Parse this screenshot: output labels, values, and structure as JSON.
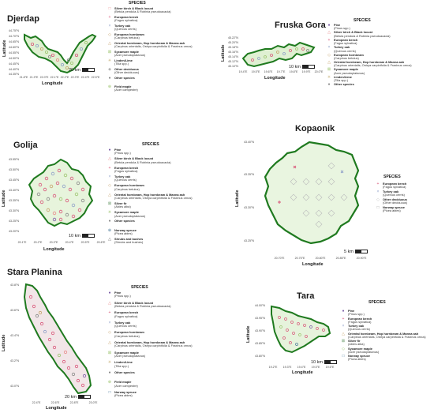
{
  "legend_title": "SPECIES",
  "scale_label": "km",
  "x_axis_label": "Longitude",
  "y_axis_label": "Latitude",
  "colors": {
    "outline": "#1f7a1f",
    "fill": "#e8f5dd",
    "beech": "#d9577a",
    "oak": "#8fa0c8",
    "hornbeam": "#c7a36b",
    "maple": "#9cc46e",
    "birch": "#e88b8b",
    "pine": "#7b5ea7",
    "other": "#888888"
  },
  "panels": [
    {
      "id": "djerdap",
      "title": "Djerdap",
      "scale": "20 km",
      "yticks": [
        "44.75°N",
        "44.70°N",
        "44.65°N",
        "44.60°N",
        "44.55°N",
        "44.50°N",
        "44.45°N",
        "44.40°N",
        "44.35°N"
      ],
      "xticks": [
        "21.8°E",
        "21.9°E",
        "22.0°E",
        "22.1°E",
        "22.2°E",
        "22.3°E",
        "22.4°E",
        "22.5°E"
      ],
      "legend": [
        {
          "name": "Silver birch & Black locust",
          "sci": "(Betula pendula & Robinia pseudoacacia)",
          "icon": "square",
          "color": "#e88b8b"
        },
        {
          "name": "European beech",
          "sci": "(Fagus sylvatica)",
          "icon": "plus",
          "color": "#d9577a"
        },
        {
          "name": "Turkey oak",
          "sci": "(Quercus cerris)",
          "icon": "cross",
          "color": "#8fa0c8"
        },
        {
          "name": "European hornbeam",
          "sci": "(Carpinus betulus)",
          "icon": "diamond",
          "color": "#c7a36b"
        },
        {
          "name": "Oriental hornbeam, Hop hornbeam & Manna ash",
          "sci": "(Carpinus orientalis, Ostrya carpinifolia & Fraxinus ornus)",
          "icon": "triangle",
          "color": "#c7a36b"
        },
        {
          "name": "Sycamore maple",
          "sci": "(Acer pseudoplatanus)",
          "icon": "square-x",
          "color": "#9cc46e"
        },
        {
          "name": "Linden/Lime",
          "sci": "(Tilia spp.)",
          "icon": "star",
          "color": "#c9b27a"
        },
        {
          "name": "Other deciduous",
          "sci": "(Other deciduous)",
          "icon": "diamond-plus",
          "color": "#999999"
        },
        {
          "name": "Other species",
          "sci": "",
          "icon": "circle",
          "color": "#888888"
        },
        {
          "name": "Field maple",
          "sci": "(Acer campestre)",
          "icon": "circle-plus",
          "color": "#9cc46e"
        }
      ]
    },
    {
      "id": "fruska",
      "title": "Fruska Gora",
      "scale": "10 km",
      "yticks": [
        "45.22°N",
        "45.20°N",
        "45.18°N",
        "45.16°N",
        "45.14°N",
        "45.12°N",
        "45.10°N"
      ],
      "xticks": [
        "19.4°E",
        "19.5°E",
        "19.6°E",
        "19.7°E",
        "19.8°E",
        "19.9°E",
        "20.0°E"
      ],
      "legend": [
        {
          "name": "Pine",
          "sci": "(Pinus spp.)",
          "icon": "circle",
          "color": "#7b5ea7"
        },
        {
          "name": "Silver birch & Black locust",
          "sci": "(Betula pendula & Robinia pseudoacacia)",
          "icon": "triangle",
          "color": "#e88b8b"
        },
        {
          "name": "European beech",
          "sci": "(Fagus sylvatica)",
          "icon": "plus",
          "color": "#d9577a"
        },
        {
          "name": "Turkey oak",
          "sci": "(Quercus cerris)",
          "icon": "cross",
          "color": "#8fa0c8"
        },
        {
          "name": "European hornbeam",
          "sci": "(Carpinus betulus)",
          "icon": "diamond",
          "color": "#c7a36b"
        },
        {
          "name": "Oriental hornbeam, Hop hornbeam & Manna ash",
          "sci": "(Carpinus orientalis, Ostrya carpinifolia & Fraxinus ornus)",
          "icon": "triangle",
          "color": "#c7a36b"
        },
        {
          "name": "Sycamore maple",
          "sci": "(Acer pseudoplatanus)",
          "icon": "square-x",
          "color": "#9cc46e"
        },
        {
          "name": "Linden/Lime",
          "sci": "(Tilia spp.)",
          "icon": "star",
          "color": "#c9b27a"
        },
        {
          "name": "Other species",
          "sci": "",
          "icon": "circle",
          "color": "#888888"
        }
      ]
    },
    {
      "id": "golija",
      "title": "Golija",
      "scale": "10 km",
      "yticks": [
        "43.55°N",
        "43.50°N",
        "43.45°N",
        "43.40°N",
        "43.35°N",
        "43.30°N",
        "43.25°N",
        "43.20°N"
      ],
      "xticks": [
        "20.1°E",
        "20.2°E",
        "20.3°E",
        "20.4°E",
        "20.5°E",
        "20.6°E"
      ],
      "legend": [
        {
          "name": "Pine",
          "sci": "(Pinus spp.)",
          "icon": "circle",
          "color": "#7b5ea7"
        },
        {
          "name": "Silver birch & Black locust",
          "sci": "(Betula pendula & Robinia pseudoacacia)",
          "icon": "triangle",
          "color": "#e88b8b"
        },
        {
          "name": "European beech",
          "sci": "(Fagus sylvatica)",
          "icon": "plus",
          "color": "#d9577a"
        },
        {
          "name": "Turkey oak",
          "sci": "(Quercus cerris)",
          "icon": "cross",
          "color": "#8fa0c8"
        },
        {
          "name": "European hornbeam",
          "sci": "(Carpinus betulus)",
          "icon": "diamond",
          "color": "#c7a36b"
        },
        {
          "name": "Oriental hornbeam, Hop hornbeam & Manna ash",
          "sci": "(Carpinus orientalis, Ostrya carpinifolia & Fraxinus ornus)",
          "icon": "triangle",
          "color": "#c7a36b"
        },
        {
          "name": "Silver fir",
          "sci": "(Abies alba)",
          "icon": "square-x",
          "color": "#6a9a6a"
        },
        {
          "name": "Sycamore maple",
          "sci": "(Acer pseudoplatanus)",
          "icon": "star",
          "color": "#9cc46e"
        },
        {
          "name": "Other species",
          "sci": "",
          "icon": "circle",
          "color": "#888888"
        },
        {
          "name": "Norway spruce",
          "sci": "(Picea abies)",
          "icon": "circle-plus",
          "color": "#4a7a9a"
        },
        {
          "name": "Shrubs and bushes",
          "sci": "(Shrubs and bushes)",
          "icon": "triangle-open",
          "color": "#666666"
        }
      ]
    },
    {
      "id": "kopaonik",
      "title": "Kopaonik",
      "scale": "5 km",
      "yticks": [
        "43.40°N",
        "43.35°N",
        "43.30°N",
        "43.25°N"
      ],
      "xticks": [
        "20.70°E",
        "20.75°E",
        "20.80°E",
        "20.85°E",
        "20.90°E"
      ],
      "legend": [
        {
          "name": "European beech",
          "sci": "(Fagus sylvatica)",
          "icon": "plus",
          "color": "#d9577a"
        },
        {
          "name": "Turkey oak",
          "sci": "(Quercus cerris)",
          "icon": "cross",
          "color": "#8fa0c8"
        },
        {
          "name": "Other deciduous",
          "sci": "(Other deciduous)",
          "icon": "diamond",
          "color": "#bbbbbb"
        },
        {
          "name": "Norway spruce",
          "sci": "(Picea abies)",
          "icon": "square",
          "color": "#9a9a9a"
        }
      ]
    },
    {
      "id": "stara",
      "title": "Stara Planina",
      "scale": "20 km",
      "yticks": [
        "43.8°N",
        "43.6°N",
        "43.4°N",
        "43.2°N",
        "43.0°N"
      ],
      "xticks": [
        "22.4°E",
        "22.6°E",
        "22.8°E",
        "23.0°E"
      ],
      "legend": [
        {
          "name": "Pine",
          "sci": "(Pinus spp.)",
          "icon": "circle",
          "color": "#7b5ea7"
        },
        {
          "name": "Silver birch & Black locust",
          "sci": "(Betula pendula & Robinia pseudoacacia)",
          "icon": "triangle",
          "color": "#e88b8b"
        },
        {
          "name": "European beech",
          "sci": "(Fagus sylvatica)",
          "icon": "plus",
          "color": "#d9577a"
        },
        {
          "name": "Turkey oak",
          "sci": "(Quercus cerris)",
          "icon": "cross",
          "color": "#8fa0c8"
        },
        {
          "name": "European hornbeam",
          "sci": "(Carpinus betulus)",
          "icon": "diamond",
          "color": "#c7a36b"
        },
        {
          "name": "Oriental hornbeam, Hop hornbeam & Manna ash",
          "sci": "(Carpinus orientalis, Ostrya carpinifolia & Fraxinus ornus)",
          "icon": "triangle",
          "color": "#c7a36b"
        },
        {
          "name": "Sycamore maple",
          "sci": "(Acer pseudoplatanus)",
          "icon": "square-x",
          "color": "#9cc46e"
        },
        {
          "name": "Linden/Lime",
          "sci": "(Tilia spp.)",
          "icon": "star",
          "color": "#c9b27a"
        },
        {
          "name": "Other species",
          "sci": "",
          "icon": "circle",
          "color": "#888888"
        },
        {
          "name": "Field maple",
          "sci": "(Acer campestre)",
          "icon": "circle-plus",
          "color": "#9cc46e"
        },
        {
          "name": "Norway spruce",
          "sci": "(Picea abies)",
          "icon": "square",
          "color": "#4a7a9a"
        }
      ]
    },
    {
      "id": "tara",
      "title": "Tara",
      "scale": "10 km",
      "yticks": [
        "44.00°N",
        "43.95°N",
        "43.90°N",
        "43.85°N",
        "43.80°N"
      ],
      "xticks": [
        "19.2°E",
        "19.3°E",
        "19.4°E",
        "19.5°E",
        "19.6°E"
      ],
      "legend": [
        {
          "name": "Pine",
          "sci": "(Pinus spp.)",
          "icon": "circle",
          "color": "#7b5ea7"
        },
        {
          "name": "European beech",
          "sci": "(Fagus sylvatica)",
          "icon": "plus",
          "color": "#d9577a"
        },
        {
          "name": "Turkey oak",
          "sci": "(Quercus cerris)",
          "icon": "cross",
          "color": "#8fa0c8"
        },
        {
          "name": "Oriental hornbeam, Hop hornbeam & Manna ash",
          "sci": "(Carpinus orientalis, Ostrya carpinifolia & Fraxinus ornus)",
          "icon": "triangle",
          "color": "#c7a36b"
        },
        {
          "name": "Silver fir",
          "sci": "(Abies alba)",
          "icon": "square-x",
          "color": "#6a9a6a"
        },
        {
          "name": "Sycamore maple",
          "sci": "(Acer pseudoplatanus)",
          "icon": "diamond",
          "color": "#9cc46e"
        },
        {
          "name": "Norway spruce",
          "sci": "(Picea abies)",
          "icon": "square",
          "color": "#4a7a9a"
        }
      ]
    }
  ]
}
